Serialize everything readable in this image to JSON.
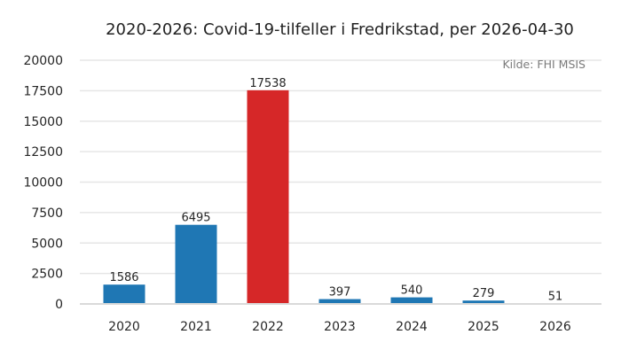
{
  "chart_data": {
    "type": "bar",
    "title": "2020-2026: Covid-19-tilfeller i Fredrikstad, per 2026-04-30",
    "annotation": "Kilde: FHI MSIS",
    "xlabel": "",
    "ylabel": "",
    "categories": [
      "2020",
      "2021",
      "2022",
      "2023",
      "2024",
      "2025",
      "2026"
    ],
    "values": [
      1586,
      6495,
      17538,
      397,
      540,
      279,
      51
    ],
    "data_labels": [
      "1586",
      "6495",
      "17538",
      "397",
      "540",
      "279",
      "51"
    ],
    "bar_colors": [
      "#1f77b4",
      "#1f77b4",
      "#d62728",
      "#1f77b4",
      "#1f77b4",
      "#1f77b4",
      "#1f77b4"
    ],
    "ylim": [
      0,
      20000
    ],
    "yticks": [
      0,
      2500,
      5000,
      7500,
      10000,
      12500,
      15000,
      17500,
      20000
    ],
    "ytick_labels": [
      "0",
      "2500",
      "5000",
      "7500",
      "10000",
      "12500",
      "15000",
      "17500",
      "20000"
    ],
    "grid": "horizontal",
    "legend": "none"
  }
}
